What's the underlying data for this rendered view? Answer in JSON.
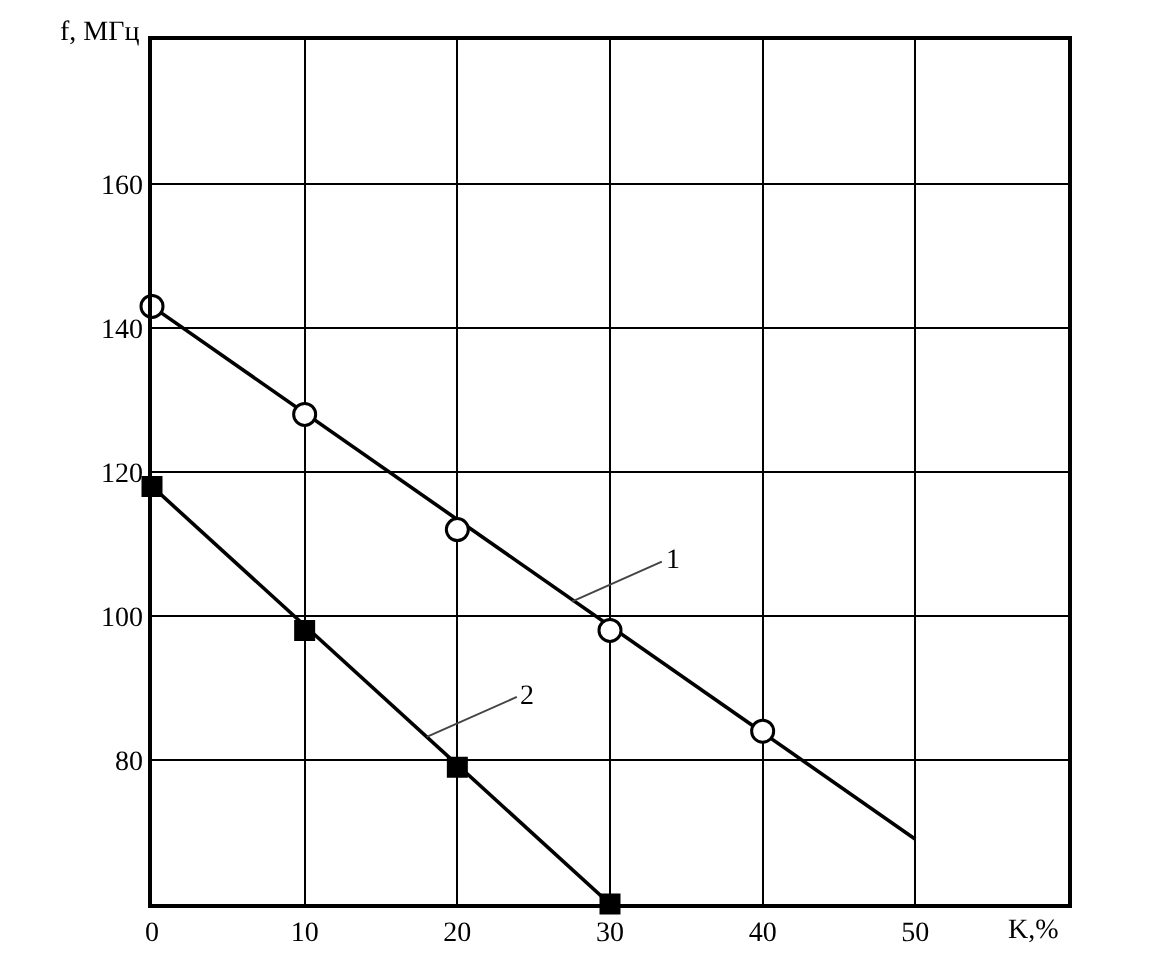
{
  "chart_data": {
    "type": "line",
    "xlabel": "K,%",
    "ylabel": "f, МГц",
    "xlim": [
      0,
      60
    ],
    "xticks": [
      0,
      10,
      20,
      30,
      40,
      50
    ],
    "ylim": [
      60,
      180
    ],
    "yticks": [
      80,
      100,
      120,
      140,
      160
    ],
    "grid": true,
    "series": [
      {
        "type": "scatter",
        "marker": "circle",
        "color": "#000000",
        "x": [
          0,
          10,
          20,
          30,
          40
        ],
        "values": [
          143,
          128,
          112,
          98,
          84
        ]
      },
      {
        "marker": "none",
        "line_style": "solid",
        "color": "#000000",
        "x": [
          0,
          50
        ],
        "values": [
          143,
          69
        ]
      },
      {
        "marker": "none",
        "line_style": "solid",
        "color": "#000000",
        "x": [
          0,
          30
        ],
        "values": [
          118,
          60
        ]
      },
      {
        "type": "scatter",
        "marker": "square",
        "color": "#000000",
        "x": [
          0,
          10,
          20,
          30
        ],
        "values": [
          118,
          98,
          79,
          60
        ]
      }
    ],
    "annotations": [
      {
        "text": "1",
        "x": 27.5,
        "y": 102
      },
      {
        "text": "2",
        "x": 18,
        "y": 83.2
      }
    ]
  }
}
